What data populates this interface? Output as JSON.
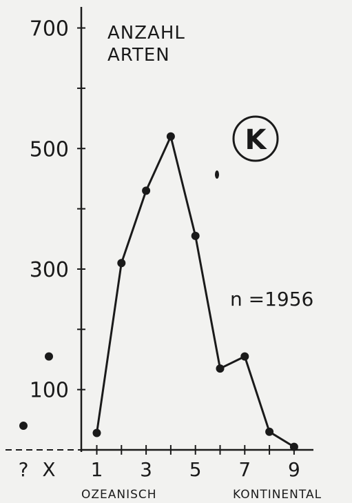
{
  "chart_data": {
    "type": "line",
    "title_lines": [
      "ANZAHL",
      "ARTEN"
    ],
    "badge": "K",
    "annotation": "n =1956",
    "x_ticks": [
      1,
      3,
      5,
      7,
      9
    ],
    "x_extra_ticks": [
      "?",
      "X"
    ],
    "x_bottom_labels": {
      "left": "OZEANISCH",
      "right": "KONTINENTAL"
    },
    "y_ticks": [
      100,
      300,
      500,
      700
    ],
    "ylim": [
      0,
      720
    ],
    "xlim": [
      1,
      9
    ],
    "series": [
      {
        "x": [
          1,
          2,
          3,
          4,
          5,
          6,
          7,
          8,
          9
        ],
        "y": [
          28,
          310,
          430,
          520,
          355,
          135,
          155,
          30,
          5
        ]
      }
    ],
    "unplaced_points": [
      {
        "category": "?",
        "y": 40
      },
      {
        "category": "X",
        "y": 155
      }
    ],
    "grid": false,
    "colors": {
      "ink": "#1a1a1a",
      "paper": "#f2f2f0"
    }
  }
}
